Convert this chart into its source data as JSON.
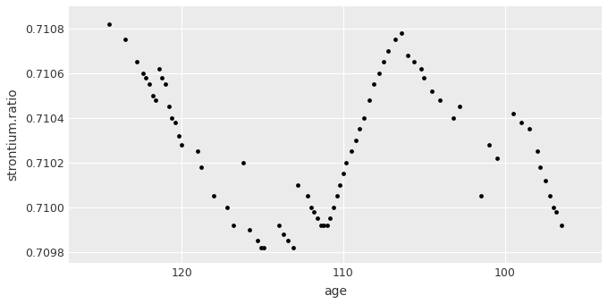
{
  "title": "",
  "xlabel": "age",
  "ylabel": "strontium.ratio",
  "background_color": "#ffffff",
  "panel_background": "#ebebeb",
  "grid_color": "#ffffff",
  "point_color": "#000000",
  "point_size": 12,
  "xlim": [
    127,
    94
  ],
  "ylim": [
    0.70975,
    0.7109
  ],
  "x_ticks": [
    120,
    110,
    100
  ],
  "y_ticks": [
    0.7098,
    0.71,
    0.7102,
    0.7104,
    0.7106,
    0.7108
  ],
  "x_values": [
    124.5,
    123.5,
    122.8,
    122.4,
    122.2,
    122.0,
    121.8,
    121.6,
    121.4,
    121.2,
    121.0,
    120.8,
    120.6,
    120.4,
    120.2,
    120.0,
    119.0,
    118.8,
    118.0,
    117.2,
    116.8,
    116.2,
    115.8,
    115.3,
    115.1,
    114.9,
    114.0,
    113.7,
    113.4,
    113.1,
    112.8,
    112.2,
    112.0,
    111.8,
    111.6,
    111.4,
    111.2,
    111.0,
    110.8,
    110.6,
    110.4,
    110.2,
    110.0,
    109.8,
    109.5,
    109.2,
    109.0,
    108.7,
    108.4,
    108.1,
    107.8,
    107.5,
    107.2,
    106.8,
    106.4,
    106.0,
    105.6,
    105.2,
    105.0,
    104.5,
    104.0,
    103.2,
    102.8,
    101.5,
    101.0,
    100.5,
    99.5,
    99.0,
    98.5,
    98.0,
    97.8,
    97.5,
    97.2,
    97.0,
    96.8,
    96.5
  ],
  "y_values": [
    0.71082,
    0.71075,
    0.71065,
    0.7106,
    0.71058,
    0.71055,
    0.7105,
    0.71048,
    0.71062,
    0.71058,
    0.71055,
    0.71045,
    0.7104,
    0.71038,
    0.71032,
    0.71028,
    0.71025,
    0.71018,
    0.71005,
    0.71,
    0.70992,
    0.7102,
    0.7099,
    0.70985,
    0.70982,
    0.70982,
    0.70992,
    0.70988,
    0.70985,
    0.70982,
    0.7101,
    0.71005,
    0.71,
    0.70998,
    0.70995,
    0.70992,
    0.70992,
    0.70992,
    0.70995,
    0.71,
    0.71005,
    0.7101,
    0.71015,
    0.7102,
    0.71025,
    0.7103,
    0.71035,
    0.7104,
    0.71048,
    0.71055,
    0.7106,
    0.71065,
    0.7107,
    0.71075,
    0.71078,
    0.71068,
    0.71065,
    0.71062,
    0.71058,
    0.71052,
    0.71048,
    0.7104,
    0.71045,
    0.71005,
    0.71028,
    0.71022,
    0.71042,
    0.71038,
    0.71035,
    0.71025,
    0.71018,
    0.71012,
    0.71005,
    0.71,
    0.70998,
    0.70992
  ]
}
